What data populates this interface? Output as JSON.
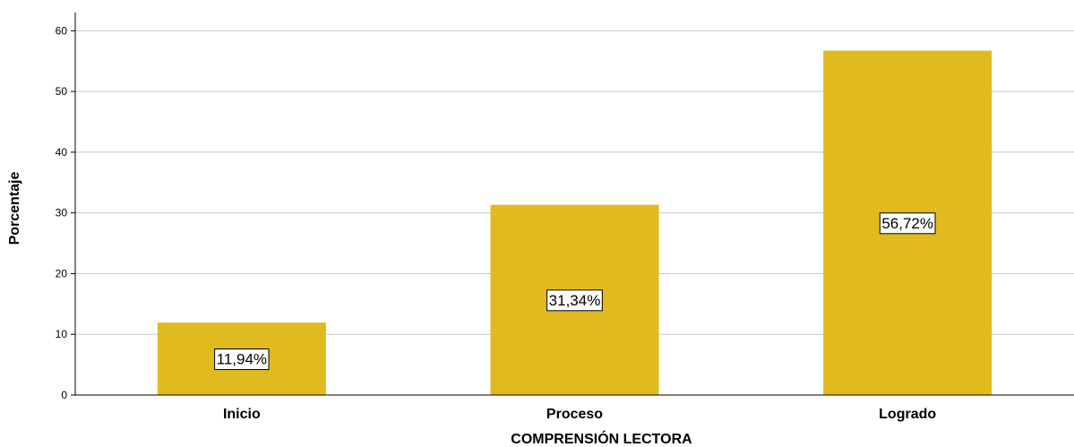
{
  "chart_data": {
    "type": "bar",
    "categories": [
      "Inicio",
      "Proceso",
      "Logrado"
    ],
    "values": [
      11.94,
      31.34,
      56.72
    ],
    "data_labels": [
      "11,94%",
      "31,34%",
      "56,72%"
    ],
    "title": "",
    "xlabel": "COMPRENSIÓN LECTORA",
    "ylabel": "Porcentaje",
    "ylim": [
      0,
      63
    ],
    "yticks": [
      0,
      10,
      20,
      30,
      40,
      50,
      60
    ],
    "ytick_labels": [
      "0",
      "10",
      "20",
      "30",
      "40",
      "50",
      "60"
    ],
    "grid": true,
    "legend": "none",
    "bar_color": "#E0BA1E",
    "grid_color": "#C8C8C8",
    "axis_color": "#000000"
  }
}
